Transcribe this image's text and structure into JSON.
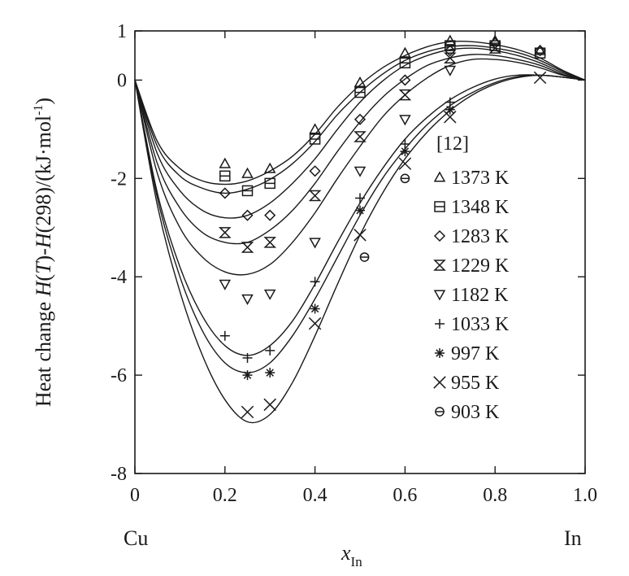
{
  "chart_data": {
    "type": "line",
    "xlabel": "x_In",
    "xlabel_main": "x",
    "xlabel_sub": "In",
    "ylabel": "Heat change H(T)-H(298)/(kJ·mol-1)",
    "ylabel_parts": [
      "Heat change ",
      "H",
      "(",
      "T",
      ")-",
      "H",
      "(298)/(kJ·mol",
      "-1",
      ")"
    ],
    "xlim": [
      0,
      1.0
    ],
    "ylim": [
      -8,
      1
    ],
    "x_ticks": [
      0,
      0.2,
      0.4,
      0.6,
      0.8,
      1.0
    ],
    "x_tick_labels": [
      "0",
      "0.2",
      "0.4",
      "0.6",
      "0.8",
      "1.0"
    ],
    "y_ticks": [
      -8,
      -6,
      -4,
      -2,
      0,
      1
    ],
    "y_tick_labels": [
      "-8",
      "-6",
      "-4",
      "-2",
      "0",
      "1"
    ],
    "x_end_labels": {
      "left": "Cu",
      "right": "In"
    },
    "legend_title": "[12]",
    "legend_position": "right-inside",
    "grid": false,
    "series": [
      {
        "name": "1373 K",
        "marker": "triangle-up",
        "curve": [
          [
            0,
            0
          ],
          [
            0.05,
            -1.25
          ],
          [
            0.1,
            -1.8
          ],
          [
            0.15,
            -2.05
          ],
          [
            0.2,
            -2.12
          ],
          [
            0.25,
            -2.05
          ],
          [
            0.3,
            -1.85
          ],
          [
            0.35,
            -1.55
          ],
          [
            0.4,
            -1.1
          ],
          [
            0.45,
            -0.55
          ],
          [
            0.5,
            -0.1
          ],
          [
            0.55,
            0.25
          ],
          [
            0.6,
            0.5
          ],
          [
            0.65,
            0.68
          ],
          [
            0.7,
            0.78
          ],
          [
            0.75,
            0.78
          ],
          [
            0.8,
            0.72
          ],
          [
            0.85,
            0.62
          ],
          [
            0.9,
            0.45
          ],
          [
            0.95,
            0.2
          ],
          [
            1.0,
            0
          ]
        ],
        "points": [
          [
            0.2,
            -1.7
          ],
          [
            0.25,
            -1.9
          ],
          [
            0.3,
            -1.8
          ],
          [
            0.4,
            -1.0
          ],
          [
            0.5,
            -0.05
          ],
          [
            0.6,
            0.55
          ],
          [
            0.7,
            0.8
          ],
          [
            0.8,
            0.8
          ],
          [
            0.9,
            0.6
          ]
        ]
      },
      {
        "name": "1348 K",
        "marker": "square",
        "curve": [
          [
            0,
            0
          ],
          [
            0.05,
            -1.35
          ],
          [
            0.1,
            -1.95
          ],
          [
            0.15,
            -2.2
          ],
          [
            0.2,
            -2.3
          ],
          [
            0.25,
            -2.22
          ],
          [
            0.3,
            -2.02
          ],
          [
            0.35,
            -1.7
          ],
          [
            0.4,
            -1.25
          ],
          [
            0.45,
            -0.7
          ],
          [
            0.5,
            -0.25
          ],
          [
            0.55,
            0.12
          ],
          [
            0.6,
            0.4
          ],
          [
            0.65,
            0.58
          ],
          [
            0.7,
            0.68
          ],
          [
            0.75,
            0.7
          ],
          [
            0.8,
            0.65
          ],
          [
            0.85,
            0.56
          ],
          [
            0.9,
            0.4
          ],
          [
            0.95,
            0.18
          ],
          [
            1.0,
            0
          ]
        ],
        "points": [
          [
            0.2,
            -1.95
          ],
          [
            0.25,
            -2.25
          ],
          [
            0.3,
            -2.1
          ],
          [
            0.4,
            -1.2
          ],
          [
            0.5,
            -0.25
          ],
          [
            0.6,
            0.35
          ],
          [
            0.7,
            0.7
          ],
          [
            0.8,
            0.7
          ],
          [
            0.9,
            0.55
          ]
        ]
      },
      {
        "name": "1283 K",
        "marker": "diamond",
        "curve": [
          [
            0,
            0
          ],
          [
            0.05,
            -1.5
          ],
          [
            0.1,
            -2.25
          ],
          [
            0.15,
            -2.65
          ],
          [
            0.2,
            -2.8
          ],
          [
            0.25,
            -2.75
          ],
          [
            0.3,
            -2.5
          ],
          [
            0.35,
            -2.1
          ],
          [
            0.4,
            -1.6
          ],
          [
            0.45,
            -1.0
          ],
          [
            0.5,
            -0.45
          ],
          [
            0.55,
            -0.02
          ],
          [
            0.6,
            0.3
          ],
          [
            0.65,
            0.5
          ],
          [
            0.7,
            0.62
          ],
          [
            0.75,
            0.65
          ],
          [
            0.8,
            0.6
          ],
          [
            0.85,
            0.5
          ],
          [
            0.9,
            0.35
          ],
          [
            0.95,
            0.15
          ],
          [
            1.0,
            0
          ]
        ],
        "points": [
          [
            0.2,
            -2.3
          ],
          [
            0.25,
            -2.75
          ],
          [
            0.3,
            -2.75
          ],
          [
            0.4,
            -1.85
          ],
          [
            0.5,
            -0.8
          ],
          [
            0.6,
            0.0
          ],
          [
            0.7,
            0.6
          ],
          [
            0.8,
            0.75
          ],
          [
            0.9,
            0.6
          ]
        ]
      },
      {
        "name": "1229 K",
        "marker": "hourglass",
        "curve": [
          [
            0,
            0
          ],
          [
            0.05,
            -1.7
          ],
          [
            0.1,
            -2.6
          ],
          [
            0.15,
            -3.1
          ],
          [
            0.2,
            -3.3
          ],
          [
            0.25,
            -3.3
          ],
          [
            0.3,
            -3.05
          ],
          [
            0.35,
            -2.65
          ],
          [
            0.4,
            -2.1
          ],
          [
            0.45,
            -1.45
          ],
          [
            0.5,
            -0.85
          ],
          [
            0.55,
            -0.35
          ],
          [
            0.6,
            0.02
          ],
          [
            0.65,
            0.3
          ],
          [
            0.7,
            0.45
          ],
          [
            0.75,
            0.52
          ],
          [
            0.8,
            0.5
          ],
          [
            0.85,
            0.42
          ],
          [
            0.9,
            0.3
          ],
          [
            0.95,
            0.12
          ],
          [
            1.0,
            0
          ]
        ],
        "points": [
          [
            0.2,
            -3.1
          ],
          [
            0.25,
            -3.4
          ],
          [
            0.3,
            -3.3
          ],
          [
            0.4,
            -2.35
          ],
          [
            0.5,
            -1.15
          ],
          [
            0.6,
            -0.3
          ],
          [
            0.7,
            0.45
          ],
          [
            0.8,
            0.65
          ]
        ]
      },
      {
        "name": "1182 K",
        "marker": "triangle-down",
        "curve": [
          [
            0,
            0
          ],
          [
            0.05,
            -1.9
          ],
          [
            0.1,
            -3.0
          ],
          [
            0.15,
            -3.6
          ],
          [
            0.2,
            -3.9
          ],
          [
            0.25,
            -3.95
          ],
          [
            0.3,
            -3.75
          ],
          [
            0.35,
            -3.3
          ],
          [
            0.4,
            -2.7
          ],
          [
            0.45,
            -2.0
          ],
          [
            0.5,
            -1.35
          ],
          [
            0.55,
            -0.75
          ],
          [
            0.6,
            -0.3
          ],
          [
            0.65,
            0.05
          ],
          [
            0.7,
            0.3
          ],
          [
            0.75,
            0.42
          ],
          [
            0.8,
            0.42
          ],
          [
            0.85,
            0.36
          ],
          [
            0.9,
            0.25
          ],
          [
            0.95,
            0.1
          ],
          [
            1.0,
            0
          ]
        ],
        "points": [
          [
            0.2,
            -4.15
          ],
          [
            0.25,
            -4.45
          ],
          [
            0.3,
            -4.35
          ],
          [
            0.4,
            -3.3
          ],
          [
            0.5,
            -1.85
          ],
          [
            0.6,
            -0.8
          ],
          [
            0.7,
            0.2
          ]
        ]
      },
      {
        "name": "1033 K",
        "marker": "plus",
        "curve": [
          [
            0,
            0
          ],
          [
            0.05,
            -2.3
          ],
          [
            0.1,
            -3.8
          ],
          [
            0.15,
            -4.8
          ],
          [
            0.2,
            -5.4
          ],
          [
            0.25,
            -5.6
          ],
          [
            0.3,
            -5.4
          ],
          [
            0.35,
            -4.9
          ],
          [
            0.4,
            -4.15
          ],
          [
            0.45,
            -3.3
          ],
          [
            0.5,
            -2.5
          ],
          [
            0.55,
            -1.8
          ],
          [
            0.6,
            -1.2
          ],
          [
            0.65,
            -0.75
          ],
          [
            0.7,
            -0.4
          ],
          [
            0.75,
            -0.15
          ],
          [
            0.8,
            0.02
          ],
          [
            0.85,
            0.1
          ],
          [
            0.9,
            0.1
          ],
          [
            0.95,
            0.06
          ],
          [
            1.0,
            0
          ]
        ],
        "points": [
          [
            0.2,
            -5.2
          ],
          [
            0.25,
            -5.65
          ],
          [
            0.3,
            -5.5
          ],
          [
            0.4,
            -4.1
          ],
          [
            0.5,
            -2.4
          ],
          [
            0.6,
            -1.3
          ],
          [
            0.7,
            -0.45
          ]
        ]
      },
      {
        "name": "997 K",
        "marker": "asterisk",
        "curve": [
          [
            0,
            0
          ],
          [
            0.05,
            -2.4
          ],
          [
            0.1,
            -4.0
          ],
          [
            0.15,
            -5.1
          ],
          [
            0.2,
            -5.75
          ],
          [
            0.25,
            -5.95
          ],
          [
            0.3,
            -5.75
          ],
          [
            0.35,
            -5.2
          ],
          [
            0.4,
            -4.45
          ],
          [
            0.45,
            -3.6
          ],
          [
            0.5,
            -2.75
          ],
          [
            0.55,
            -2.0
          ],
          [
            0.6,
            -1.4
          ],
          [
            0.65,
            -0.9
          ],
          [
            0.7,
            -0.52
          ],
          [
            0.75,
            -0.25
          ],
          [
            0.8,
            -0.05
          ],
          [
            0.85,
            0.07
          ],
          [
            0.9,
            0.1
          ],
          [
            0.95,
            0.06
          ],
          [
            1.0,
            0
          ]
        ],
        "points": [
          [
            0.25,
            -6.0
          ],
          [
            0.3,
            -5.95
          ],
          [
            0.4,
            -4.65
          ],
          [
            0.5,
            -2.65
          ],
          [
            0.6,
            -1.45
          ],
          [
            0.7,
            -0.6
          ]
        ]
      },
      {
        "name": "955 K",
        "marker": "cross",
        "curve": [
          [
            0,
            0
          ],
          [
            0.05,
            -2.55
          ],
          [
            0.1,
            -4.3
          ],
          [
            0.15,
            -5.6
          ],
          [
            0.2,
            -6.5
          ],
          [
            0.25,
            -6.95
          ],
          [
            0.3,
            -6.8
          ],
          [
            0.35,
            -6.15
          ],
          [
            0.4,
            -5.2
          ],
          [
            0.45,
            -4.15
          ],
          [
            0.5,
            -3.15
          ],
          [
            0.55,
            -2.3
          ],
          [
            0.6,
            -1.6
          ],
          [
            0.65,
            -1.05
          ],
          [
            0.7,
            -0.62
          ],
          [
            0.75,
            -0.3
          ],
          [
            0.8,
            -0.08
          ],
          [
            0.85,
            0.05
          ],
          [
            0.9,
            0.1
          ],
          [
            0.95,
            0.06
          ],
          [
            1.0,
            0
          ]
        ],
        "points": [
          [
            0.25,
            -6.75
          ],
          [
            0.3,
            -6.6
          ],
          [
            0.4,
            -4.95
          ],
          [
            0.5,
            -3.15
          ],
          [
            0.6,
            -1.7
          ],
          [
            0.7,
            -0.75
          ],
          [
            0.9,
            0.05
          ]
        ]
      },
      {
        "name": "903 K",
        "marker": "circle",
        "curve": [],
        "points": [
          [
            0.51,
            -3.6
          ],
          [
            0.6,
            -2.0
          ]
        ]
      }
    ]
  }
}
